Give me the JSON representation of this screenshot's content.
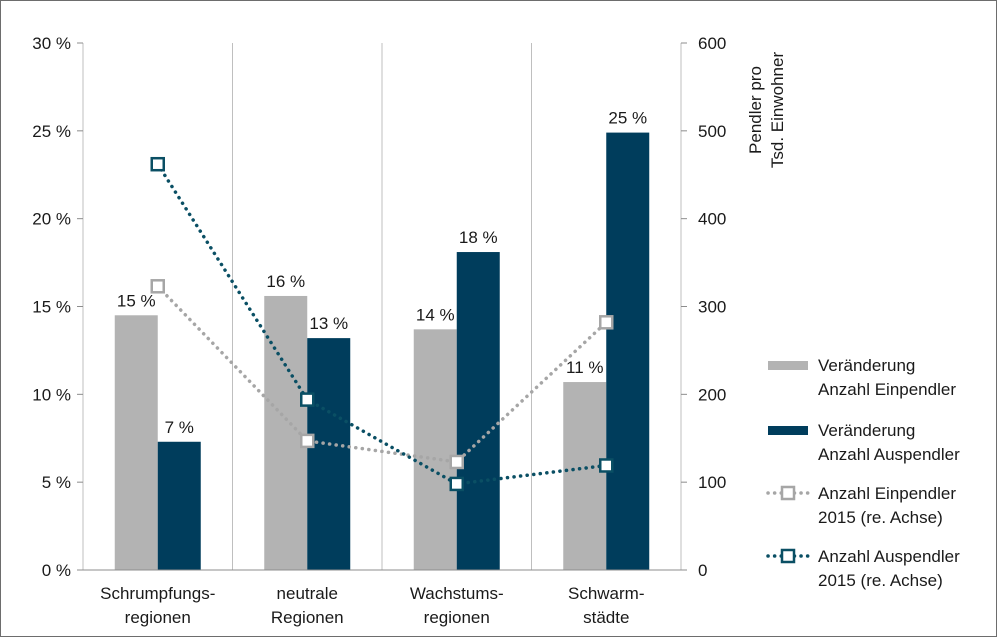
{
  "chart_data": {
    "type": "bar",
    "categories": [
      [
        "Schrumpfungs-",
        "regionen"
      ],
      [
        "neutrale",
        "Regionen"
      ],
      [
        "Wachstums-",
        "regionen"
      ],
      [
        "Schwarm-",
        "städte"
      ]
    ],
    "left_axis": {
      "min": 0,
      "max": 30,
      "step": 5,
      "tick_labels": [
        "0 %",
        "5 %",
        "10 %",
        "15 %",
        "20 %",
        "25 %",
        "30 %"
      ]
    },
    "right_axis": {
      "min": 0,
      "max": 600,
      "step": 100,
      "tick_labels": [
        "0",
        "100",
        "200",
        "300",
        "400",
        "500",
        "600"
      ],
      "title": [
        "Pendler pro",
        "Tsd. Einwohner"
      ]
    },
    "grid": "vertical category separators",
    "legend_position": "right",
    "series": [
      {
        "name": [
          "Veränderung",
          "Anzahl Einpendler"
        ],
        "kind": "bar",
        "axis": "left",
        "color": "#b3b3b3",
        "values": [
          14.5,
          15.6,
          13.7,
          10.7
        ],
        "labels": [
          "15 %",
          "16 %",
          "14 %",
          "11 %"
        ]
      },
      {
        "name": [
          "Veränderung",
          "Anzahl Auspendler"
        ],
        "kind": "bar",
        "axis": "left",
        "color": "#003d5c",
        "values": [
          7.3,
          13.2,
          18.1,
          24.9
        ],
        "labels": [
          "7 %",
          "13 %",
          "18 %",
          "25 %"
        ]
      },
      {
        "name": [
          "Anzahl Einpendler",
          "2015 (re. Achse)"
        ],
        "kind": "line",
        "axis": "right",
        "color": "#a6a6a6",
        "values": [
          323,
          147,
          123,
          282
        ]
      },
      {
        "name": [
          "Anzahl Auspendler",
          "2015 (re. Achse)"
        ],
        "kind": "line",
        "axis": "right",
        "color": "#0a4f64",
        "values": [
          462,
          194,
          98,
          119
        ]
      }
    ]
  }
}
